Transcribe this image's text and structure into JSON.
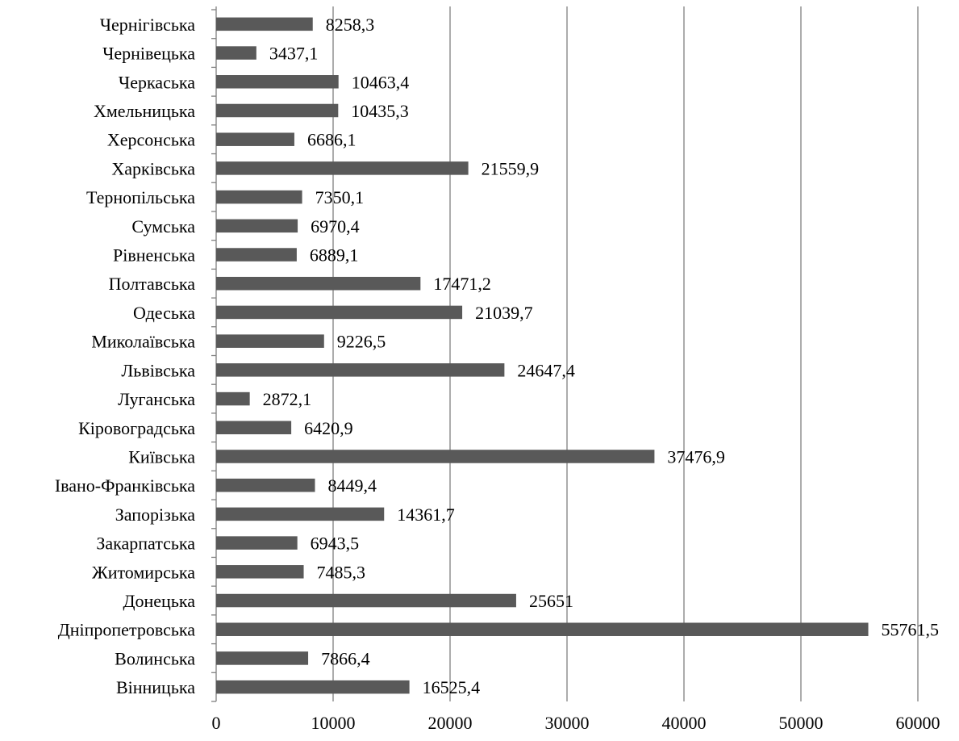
{
  "chart_data": {
    "type": "bar",
    "orientation": "horizontal",
    "title": "",
    "xlabel": "",
    "ylabel": "",
    "xlim": [
      0,
      60000
    ],
    "x_ticks": [
      "0",
      "10000",
      "20000",
      "30000",
      "40000",
      "50000",
      "60000"
    ],
    "grid": true,
    "bar_color": "#595959",
    "grid_color": "#808080",
    "categories": [
      "Чернігівська",
      "Чернівецька",
      "Черкаська",
      "Хмельницька",
      "Херсонська",
      "Харківська",
      "Тернопільська",
      "Сумська",
      "Рівненська",
      "Полтавська",
      "Одеська",
      "Миколаївська",
      "Львівська",
      "Луганська",
      "Кіровоградська",
      "Київська",
      "Івано-Франківська",
      "Запорізька",
      "Закарпатська",
      "Житомирська",
      "Донецька",
      "Дніпропетровська",
      "Волинська",
      "Вінницька"
    ],
    "values": [
      8258.3,
      3437.1,
      10463.4,
      10435.3,
      6686.1,
      21559.9,
      7350.1,
      6970.4,
      6889.1,
      17471.2,
      21039.7,
      9226.5,
      24647.4,
      2872.1,
      6420.9,
      37476.9,
      8449.4,
      14361.7,
      6943.5,
      7485.3,
      25651,
      55761.5,
      7866.4,
      16525.4
    ],
    "data_labels": [
      "8258,3",
      "3437,1",
      "10463,4",
      "10435,3",
      "6686,1",
      "21559,9",
      "7350,1",
      "6970,4",
      "6889,1",
      "17471,2",
      "21039,7",
      "9226,5",
      "24647,4",
      "2872,1",
      "6420,9",
      "37476,9",
      "8449,4",
      "14361,7",
      "6943,5",
      "7485,3",
      "25651",
      "55761,5",
      "7866,4",
      "16525,4"
    ]
  }
}
